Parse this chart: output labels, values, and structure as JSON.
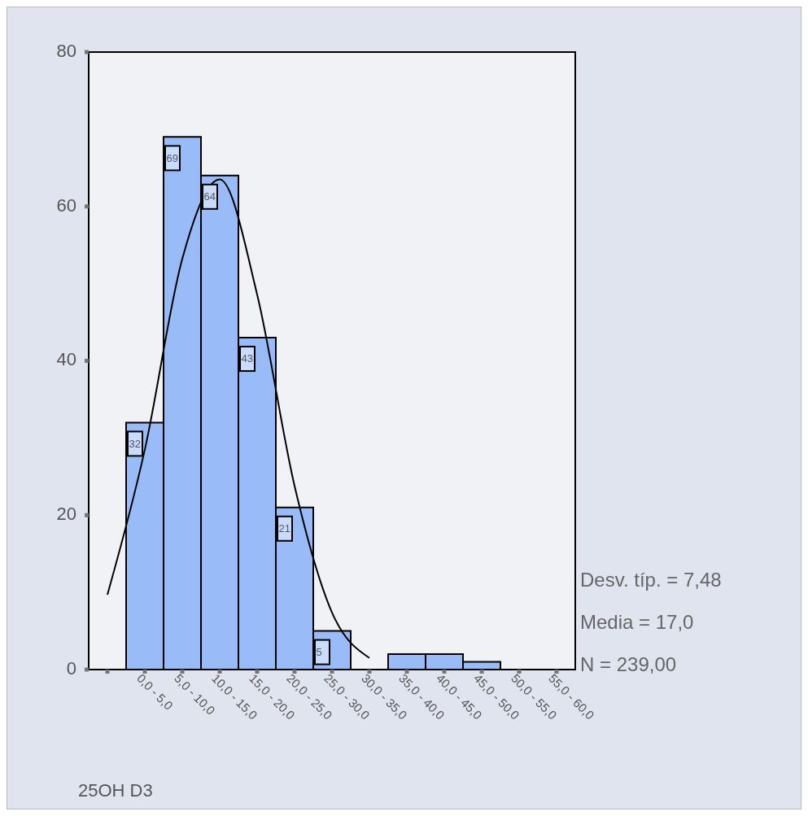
{
  "chart_data": {
    "type": "bar",
    "xlabel": "25OH D3",
    "categories": [
      null,
      "0,0 - 5,0",
      "5,0 - 10,0",
      "10,0 - 15,0",
      "15,0 - 20,0",
      "20,0 - 25,0",
      "25,0 - 30,0",
      "30,0 - 35,0",
      "35,0 - 40,0",
      "40,0 - 45,0",
      "45,0 - 50,0",
      "50,0 - 55,0",
      "55,0 - 60,0"
    ],
    "values": [
      0,
      32,
      69,
      64,
      43,
      21,
      5,
      0,
      2,
      2,
      1,
      0,
      0
    ],
    "value_labels": [
      null,
      "32",
      "69",
      "64",
      "43",
      "21",
      "5",
      null,
      null,
      null,
      null,
      null,
      null
    ],
    "color": "#99bbf7",
    "ylim": [
      0,
      80
    ],
    "yticks": [
      0,
      20,
      40,
      60,
      80
    ],
    "series": [
      {
        "type": "line",
        "color": "#000000",
        "values": [
          9.7,
          28.5,
          53.2,
          63.5,
          48.6,
          23.8,
          7.4,
          1.5,
          null,
          null,
          null,
          null,
          null
        ]
      }
    ],
    "annotations": [
      "Desv. típ. = 7,48",
      "Media = 17,0",
      "N = 239,00"
    ]
  }
}
